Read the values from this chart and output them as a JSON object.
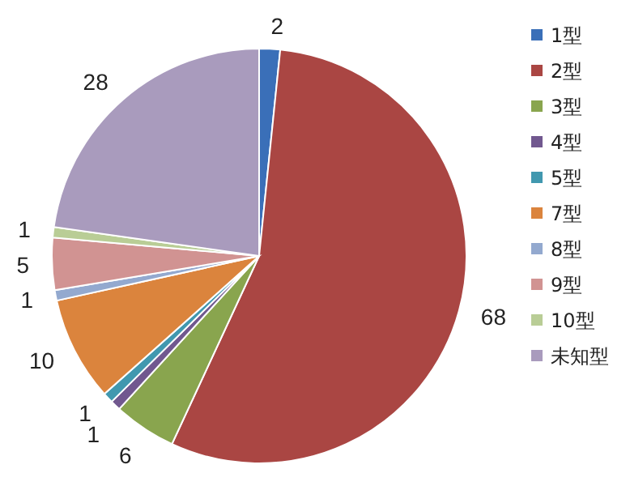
{
  "chart_data": {
    "type": "pie",
    "categories": [
      "1型",
      "2型",
      "3型",
      "4型",
      "5型",
      "7型",
      "8型",
      "9型",
      "10型",
      "未知型"
    ],
    "values": [
      2,
      68,
      6,
      1,
      1,
      10,
      1,
      5,
      1,
      28
    ],
    "colors": [
      "#3a6fb8",
      "#aa4643",
      "#89a54e",
      "#71588f",
      "#4198af",
      "#db843d",
      "#93a9cf",
      "#d19392",
      "#b9cd96",
      "#a99bbd"
    ],
    "data_labels": true,
    "legend": "right"
  }
}
